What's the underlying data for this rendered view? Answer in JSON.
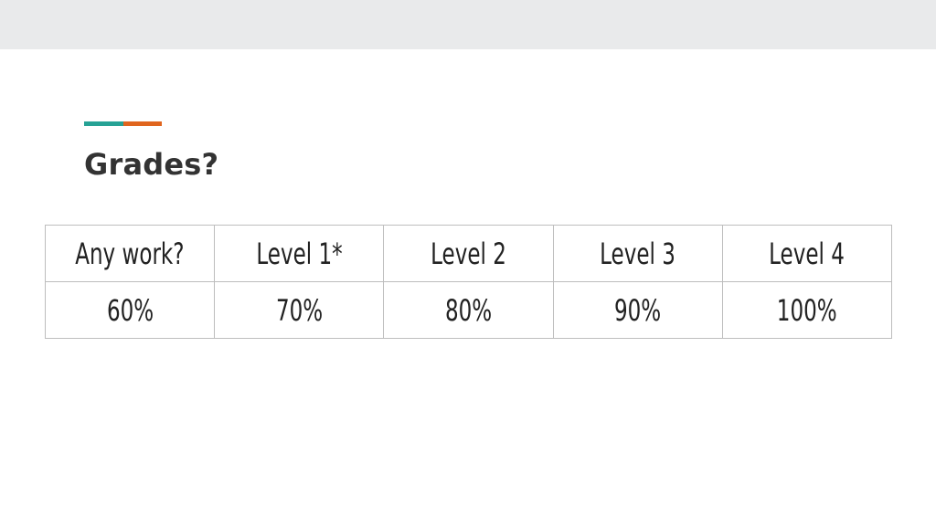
{
  "slide": {
    "title": "Grades?",
    "accent_colors": [
      "#26a295",
      "#e0651e"
    ]
  },
  "table": {
    "header": [
      "Any work?",
      "Level 1*",
      "Level 2",
      "Level 3",
      "Level 4"
    ],
    "rows": [
      [
        "60%",
        "70%",
        "80%",
        "90%",
        "100%"
      ]
    ]
  }
}
